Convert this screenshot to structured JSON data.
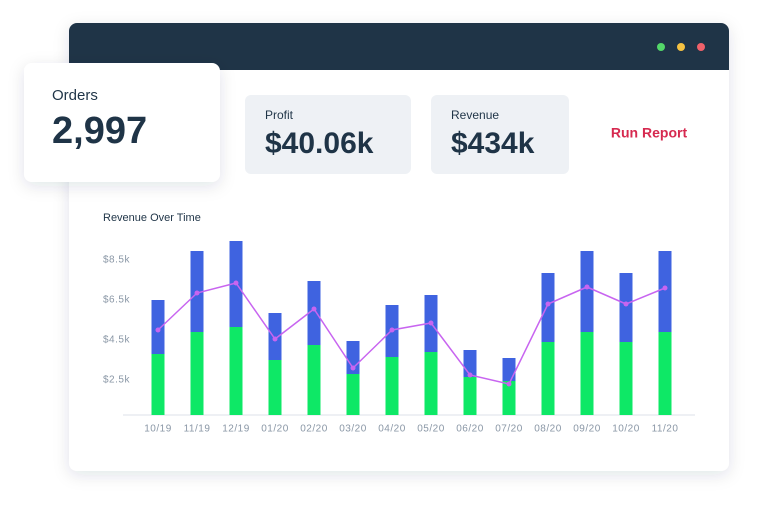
{
  "window": {
    "cards": [
      {
        "label": "Orders",
        "value": "2,997"
      },
      {
        "label": "Profit",
        "value": "$40.06k"
      },
      {
        "label": "Revenue",
        "value": "$434k"
      }
    ],
    "action": "Run Report",
    "chart": {
      "type": "bar",
      "stacked": true,
      "title": "Revenue Over Time",
      "categories": [
        "10/19",
        "11/19",
        "12/19",
        "01/20",
        "02/20",
        "03/20",
        "04/20",
        "05/20",
        "06/20",
        "07/20",
        "08/20",
        "09/20",
        "10/20",
        "11/20"
      ],
      "series": [
        {
          "color": "#0ee866",
          "values": [
            3050,
            4150,
            4400,
            2750,
            3500,
            2050,
            2900,
            3150,
            1900,
            1700,
            3650,
            4150,
            3650,
            4150
          ]
        },
        {
          "color": "#3f63e0",
          "values": [
            2700,
            4050,
            4300,
            2350,
            3200,
            1650,
            2600,
            2850,
            1350,
            1150,
            3450,
            4050,
            3450,
            4050
          ]
        }
      ],
      "line": {
        "color": "#c865f0",
        "values": [
          5000,
          6850,
          7350,
          4550,
          6050,
          3100,
          5000,
          5350,
          2750,
          2300,
          6300,
          7150,
          6300,
          7100
        ]
      },
      "ylim": [
        750,
        9000
      ],
      "yticks": [
        {
          "value": 2500,
          "label": "$2.5k"
        },
        {
          "value": 4500,
          "label": "$4.5k"
        },
        {
          "value": 6500,
          "label": "$6.5k"
        },
        {
          "value": 8500,
          "label": "$8.5k"
        }
      ]
    }
  }
}
